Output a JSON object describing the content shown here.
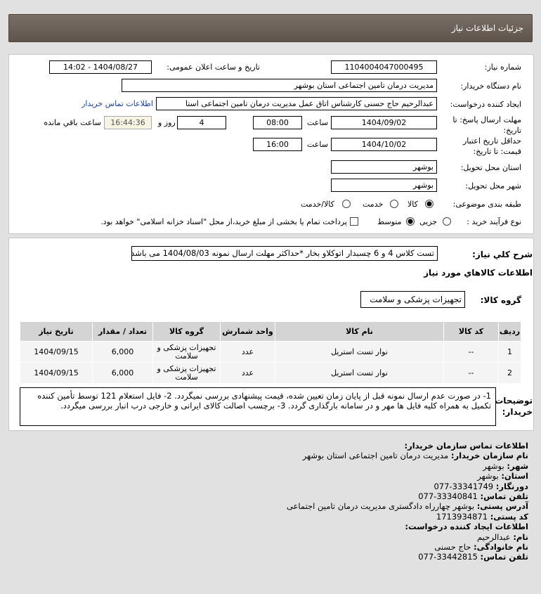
{
  "header": {
    "title": "جزئيات اطلاعات نياز"
  },
  "form": {
    "need_number_label": "شماره نیاز:",
    "need_number": "1104004047000495",
    "announce_label": "تاریخ و ساعت اعلان عمومی:",
    "announce_value": "1404/08/27 - 14:02",
    "buyer_org_label": "نام دستگاه خریدار:",
    "buyer_org": "مدیریت درمان تامین اجتماعی استان بوشهر",
    "creator_label": "ایجاد کننده درخواست:",
    "creator": "عبدالرحیم حاج حسنی کارشناس اتاق عمل مدیریت درمان تامین اجتماعی استا",
    "contact_link": "اطلاعات تماس خریدار",
    "deadline_label": "مهلت ارسال پاسخ: تا تاریخ:",
    "deadline_date": "1404/09/02",
    "time_label": "ساعت",
    "deadline_time": "08:00",
    "days": "4",
    "days_label": "روز و",
    "remaining": "16:44:36",
    "remaining_label": "ساعت باقي مانده",
    "validity_label": "حداقل تاریخ اعتبار قیمت: تا تاریخ:",
    "validity_date": "1404/10/02",
    "validity_time": "16:00",
    "province_label": "استان محل تحویل:",
    "province": "بوشهر",
    "city_label": "شهر محل تحویل:",
    "city": "بوشهر",
    "category_label": "طبقه بندی موضوعی:",
    "category_options": [
      "کالا",
      "خدمت",
      "کالا/خدمت"
    ],
    "category_selected": "کالا",
    "process_label": "نوع فرآیند خرید :",
    "process_options": [
      "جزیی",
      "متوسط"
    ],
    "process_selected": "متوسط",
    "payment_note": "پرداخت تمام یا بخشی از مبلغ خرید،از محل \"اسناد خزانه اسلامی\" خواهد بود."
  },
  "summary": {
    "label": "شرح كلي نياز:",
    "value": "تست کلاس 4 و 6 چسبدار اتوکلاو بخار *حداکثر مهلت ارسال نمونه 1404/08/03 می باشد"
  },
  "goods": {
    "title": "اطلاعات كالاهاي مورد نياز",
    "group_label": "گروه کالا:",
    "group_value": "تجهیزات پزشکی و سلامت",
    "columns": [
      "ردیف",
      "کد کالا",
      "نام کالا",
      "واحد شمارش",
      "گروه کالا",
      "تعداد / مقدار",
      "تاریخ نیاز"
    ],
    "rows": [
      [
        "1",
        "--",
        "نوار تست استریل",
        "عدد",
        "تجهیزات پزشکی و سلامت",
        "6,000",
        "1404/09/15"
      ],
      [
        "2",
        "--",
        "نوار تست استریل",
        "عدد",
        "تجهیزات پزشکی و سلامت",
        "6,000",
        "1404/09/15"
      ]
    ]
  },
  "notes": {
    "label": "توضیحات خریدار:",
    "text": "1- در صورت عدم ارسال نمونه قبل از پایان زمان تعیین شده، قیمت پیشنهادی بررسی نمیگردد. 2- فایل استعلام 121 توسط تأمین کننده تکمیل به همراه کلیه فایل ها مهر و در سامانه بارگذاری گردد. 3- برچسب اصالت کالای ایرانی و خارجی درب انبار بررسی میگردد."
  },
  "contact": {
    "title": "اطلاعات تماس سازمان خریدار:",
    "items": [
      {
        "k": "نام سازمان خریدار:",
        "v": "مدیریت درمان تامین اجتماعی استان بوشهر"
      },
      {
        "k": "شهر:",
        "v": "بوشهر"
      },
      {
        "k": "استان:",
        "v": "بوشهر"
      },
      {
        "k": "دورنگار:",
        "v": "33341749-077"
      },
      {
        "k": "تلفن تماس:",
        "v": "33340841-077"
      },
      {
        "k": "آدرس پستی:",
        "v": "بوشهر چهارراه دادگستری مدیریت درمان تامین اجتماعی"
      },
      {
        "k": "کد پستی:",
        "v": "1713934871"
      }
    ],
    "creator_title": "اطلاعات ایجاد کننده درخواست:",
    "creator_items": [
      {
        "k": "نام:",
        "v": "عبدالرحیم"
      },
      {
        "k": "نام خانوادگی:",
        "v": "حاج حسنی"
      },
      {
        "k": "تلفن تماس:",
        "v": "33442815-077"
      }
    ]
  }
}
